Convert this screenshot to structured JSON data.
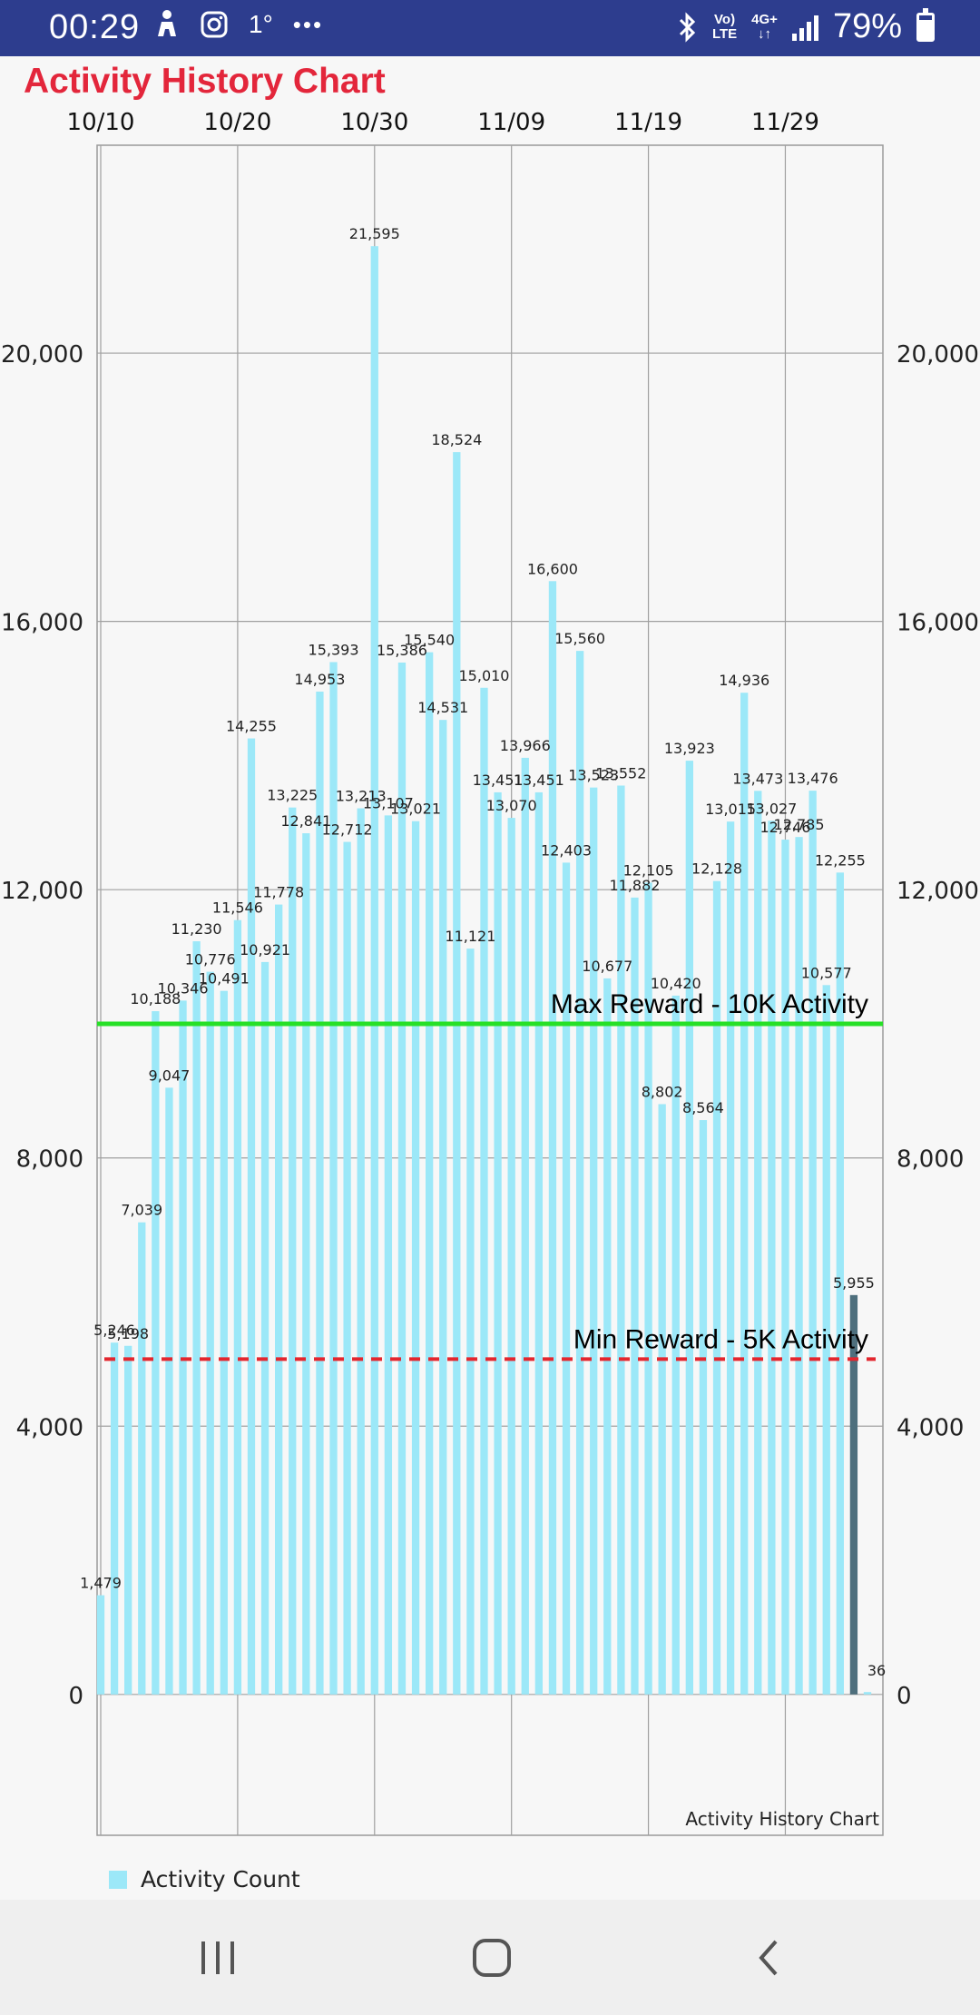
{
  "status_bar": {
    "time": "00:29",
    "notif_icons": [
      "person-icon",
      "instagram-icon",
      "temperature-icon",
      "more-icon"
    ],
    "temp_text": "1°",
    "more_text": "•••",
    "net_top": "Vo)",
    "net_bottom": "LTE",
    "data_top": "4G+",
    "data_bottom": "↓↑",
    "battery": "79%",
    "battery_level": 0.79
  },
  "chart_data": {
    "type": "bar",
    "title": "Activity History Chart",
    "description": "Activity History Chart",
    "x_tick_labels": [
      "10/10",
      "10/20",
      "10/30",
      "11/09",
      "11/19",
      "11/29"
    ],
    "y_tick_labels": [
      "0",
      "4,000",
      "8,000",
      "12,000",
      "16,000",
      "20,000"
    ],
    "ylim": [
      -2100,
      23100
    ],
    "y_ticks": [
      0,
      4000,
      8000,
      12000,
      16000,
      20000
    ],
    "start_date": "10/10",
    "values": [
      1479,
      5246,
      5198,
      7039,
      10188,
      9047,
      10346,
      11230,
      10776,
      10491,
      11546,
      14255,
      10921,
      11778,
      13225,
      12841,
      14953,
      15393,
      12712,
      13213,
      21595,
      13107,
      15386,
      13021,
      15540,
      14531,
      18524,
      11121,
      15010,
      13451,
      13070,
      13966,
      13451,
      16600,
      12403,
      15560,
      13523,
      10677,
      13552,
      11882,
      12105,
      8802,
      10420,
      13923,
      8564,
      12128,
      13015,
      14936,
      13473,
      13027,
      12746,
      12785,
      13476,
      10577,
      12255,
      5955,
      36
    ],
    "labels": [
      "1,479",
      "5,246",
      "5,198",
      "7,039",
      "10,188",
      "9,047",
      "10,346",
      "11,230",
      "10,776",
      "10,491",
      "11,546",
      "14,255",
      "10,921",
      "11,778",
      "13,225",
      "12,841",
      "14,953",
      "15,393",
      "12,712",
      "13,213",
      "21,595",
      "13,107",
      "15,386",
      "13,021",
      "15,540",
      "14,531",
      "18,524",
      "11,121",
      "15,010",
      "13,451",
      "13,070",
      "13,966",
      "13,451",
      "16,600",
      "12,403",
      "15,560",
      "13,523",
      "10,677",
      "13,552",
      "11,882",
      "12,105",
      "8,802",
      "10,420",
      "13,923",
      "8,564",
      "12,128",
      "13,015",
      "14,936",
      "13,473",
      "13,027",
      "12,746",
      "12,785",
      "13,476",
      "10,577",
      "12,255",
      "5,955",
      "36"
    ],
    "highlight_index": 55,
    "bar_color": "#9ce8f8",
    "highlight_color": "#4e6f7d",
    "grid": true,
    "limit_lines": [
      {
        "value": 10000,
        "label": "Max Reward - 10K Activity",
        "color": "#27e027",
        "style": "solid"
      },
      {
        "value": 5000,
        "label": "Min Reward - 5K Activity",
        "color": "#e3262e",
        "style": "dashed"
      }
    ],
    "legend": {
      "label": "Activity Count",
      "position": "bottom-left"
    }
  },
  "nav_bar": {
    "recents": "recents-icon",
    "home": "home-icon",
    "back": "back-icon"
  }
}
